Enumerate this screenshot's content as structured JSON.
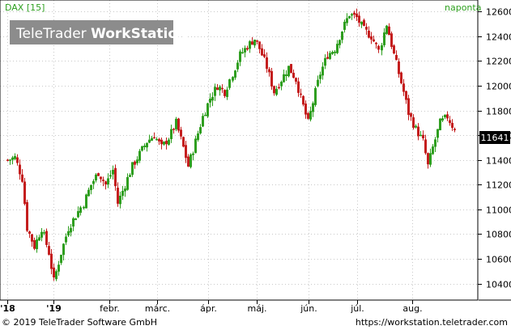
{
  "header": {
    "instrument": "DAX [15]",
    "period": "naponta",
    "watermark_plain": "TeleTrader ",
    "watermark_bold": "WorkStation"
  },
  "last_price": "11641",
  "footer": {
    "copyright": "© 2019 TeleTrader Software GmbH",
    "url": "https://workstation.teletrader.com"
  },
  "colors": {
    "up": "#2e9e1f",
    "down": "#c41e1e",
    "header_text": "#2ea01f",
    "price_box": "#000000",
    "grid": "#c8c8c8"
  },
  "chart_data": {
    "type": "candlestick",
    "title": "DAX [15]",
    "period": "naponta",
    "x_tick_labels": [
      "'18",
      "'19",
      "febr.",
      "márc.",
      "ápr.",
      "máj.",
      "jún.",
      "júl.",
      "aug."
    ],
    "y_ticks": [
      10400,
      10600,
      10800,
      11000,
      11200,
      11400,
      11600,
      11800,
      12000,
      12200,
      12400,
      12600
    ],
    "ylim": [
      10280,
      12680
    ],
    "y_axis_side": "right",
    "grid": true,
    "last_value": 11641,
    "anchors": [
      {
        "d": 0,
        "v": 11400
      },
      {
        "d": 3,
        "v": 11420
      },
      {
        "d": 6,
        "v": 11250
      },
      {
        "d": 8,
        "v": 10850
      },
      {
        "d": 11,
        "v": 10700
      },
      {
        "d": 14,
        "v": 10850
      },
      {
        "d": 17,
        "v": 10650
      },
      {
        "d": 19,
        "v": 10420
      },
      {
        "d": 22,
        "v": 10650
      },
      {
        "d": 25,
        "v": 10850
      },
      {
        "d": 28,
        "v": 10950
      },
      {
        "d": 31,
        "v": 11050
      },
      {
        "d": 34,
        "v": 11200
      },
      {
        "d": 37,
        "v": 11300
      },
      {
        "d": 40,
        "v": 11200
      },
      {
        "d": 43,
        "v": 11320
      },
      {
        "d": 45,
        "v": 11050
      },
      {
        "d": 48,
        "v": 11200
      },
      {
        "d": 51,
        "v": 11350
      },
      {
        "d": 54,
        "v": 11450
      },
      {
        "d": 57,
        "v": 11550
      },
      {
        "d": 60,
        "v": 11600
      },
      {
        "d": 63,
        "v": 11500
      },
      {
        "d": 66,
        "v": 11580
      },
      {
        "d": 69,
        "v": 11700
      },
      {
        "d": 72,
        "v": 11500
      },
      {
        "d": 74,
        "v": 11350
      },
      {
        "d": 77,
        "v": 11550
      },
      {
        "d": 80,
        "v": 11750
      },
      {
        "d": 83,
        "v": 11900
      },
      {
        "d": 86,
        "v": 12000
      },
      {
        "d": 89,
        "v": 11950
      },
      {
        "d": 92,
        "v": 12100
      },
      {
        "d": 95,
        "v": 12250
      },
      {
        "d": 98,
        "v": 12320
      },
      {
        "d": 101,
        "v": 12380
      },
      {
        "d": 103,
        "v": 12300
      },
      {
        "d": 106,
        "v": 12150
      },
      {
        "d": 109,
        "v": 11950
      },
      {
        "d": 112,
        "v": 12050
      },
      {
        "d": 115,
        "v": 12150
      },
      {
        "d": 118,
        "v": 12050
      },
      {
        "d": 120,
        "v": 11900
      },
      {
        "d": 123,
        "v": 11700
      },
      {
        "d": 126,
        "v": 11950
      },
      {
        "d": 128,
        "v": 12100
      },
      {
        "d": 131,
        "v": 12250
      },
      {
        "d": 134,
        "v": 12300
      },
      {
        "d": 137,
        "v": 12450
      },
      {
        "d": 140,
        "v": 12580
      },
      {
        "d": 143,
        "v": 12550
      },
      {
        "d": 146,
        "v": 12450
      },
      {
        "d": 149,
        "v": 12400
      },
      {
        "d": 152,
        "v": 12280
      },
      {
        "d": 155,
        "v": 12500
      },
      {
        "d": 158,
        "v": 12250
      },
      {
        "d": 160,
        "v": 12100
      },
      {
        "d": 162,
        "v": 11950
      },
      {
        "d": 164,
        "v": 11780
      },
      {
        "d": 167,
        "v": 11650
      },
      {
        "d": 170,
        "v": 11550
      },
      {
        "d": 172,
        "v": 11350
      },
      {
        "d": 174,
        "v": 11500
      },
      {
        "d": 177,
        "v": 11700
      },
      {
        "d": 180,
        "v": 11750
      },
      {
        "d": 183,
        "v": 11641
      }
    ]
  }
}
